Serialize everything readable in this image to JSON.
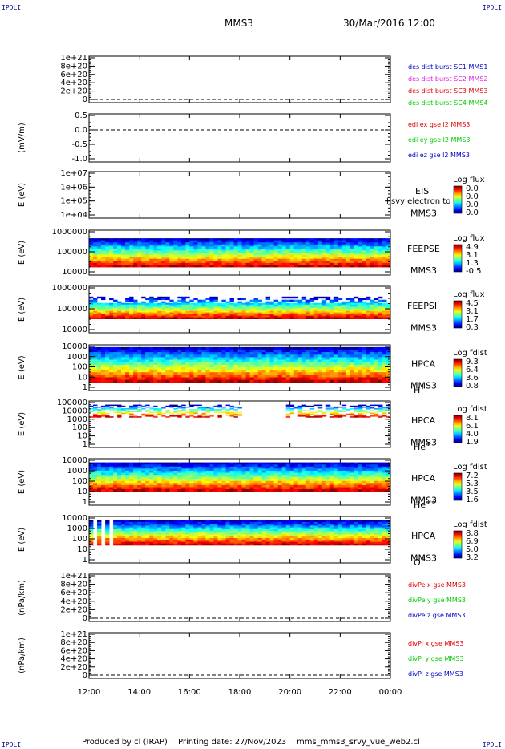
{
  "corners": {
    "top_left": "IPDLI",
    "top_right": "IPDLI",
    "bottom_left": "IPDLI",
    "bottom_right": "IPDLI"
  },
  "header": {
    "spacecraft": "MMS3",
    "datetime": "30/Mar/2016 12:00"
  },
  "footer": {
    "produced_by": "Produced by cl (IRAP)",
    "printing_date": "Printing date: 27/Nov/2023",
    "script": "mms_mms3_srvy_vue_web2.cl"
  },
  "colors": {
    "blue": "#0000cc",
    "magenta": "#e020e0",
    "red": "#e00000",
    "green": "#00cc00"
  },
  "chart_data": {
    "type": "heatmap",
    "xlabel": "",
    "x_ticks": [
      "12:00",
      "14:00",
      "16:00",
      "18:00",
      "20:00",
      "22:00",
      "00:00"
    ],
    "xlim_hours": [
      12,
      24
    ],
    "panels": [
      {
        "id": "des-dist",
        "type": "line",
        "ylabel": "",
        "yticks": [
          "1e+21",
          "8e+20",
          "6e+20",
          "4e+20",
          "2e+20",
          "0"
        ],
        "zero_line": true,
        "legend": [
          {
            "text": "des dist burst SC1 MMS1",
            "color": "#0000cc"
          },
          {
            "text": "des dist burst SC2 MMS2",
            "color": "#e020e0"
          },
          {
            "text": "des dist burst SC3 MMS3",
            "color": "#e00000"
          },
          {
            "text": "des dist burst SC4 MMS4",
            "color": "#00cc00"
          }
        ]
      },
      {
        "id": "edi",
        "type": "line",
        "ylabel": "(mV/m)",
        "yticks": [
          "0.5",
          "0.0",
          "-0.5",
          "-1.0"
        ],
        "zero_line": true,
        "legend": [
          {
            "text": "edi ex gse l2 MMS3",
            "color": "#e00000"
          },
          {
            "text": "edi ey gse l2 MMS3",
            "color": "#00cc00"
          },
          {
            "text": "edi ez gse l2 MMS3",
            "color": "#0000cc"
          }
        ]
      },
      {
        "id": "eis",
        "type": "heatmap",
        "ylabel": "E (eV)",
        "yticks": [
          "1e+07",
          "1e+06",
          "1e+05",
          "1e+04"
        ],
        "labels": [
          "EIS",
          "MMS3"
        ],
        "overlay": "l svy electron to",
        "colorbar": {
          "title": "Log flux",
          "ticks": [
            "0.0",
            "0.0",
            "0.0",
            "0.0"
          ]
        }
      },
      {
        "id": "feepse",
        "type": "heatmap",
        "ylabel": "E (eV)",
        "yticks": [
          "1000000",
          "100000",
          "10000"
        ],
        "labels": [
          "FEEPSE",
          "MMS3"
        ],
        "colorbar": {
          "title": "Log flux",
          "ticks": [
            "4.9",
            "3.1",
            "1.3",
            "-0.5"
          ]
        }
      },
      {
        "id": "feepsi",
        "type": "heatmap",
        "ylabel": "E (eV)",
        "yticks": [
          "1000000",
          "100000",
          "10000"
        ],
        "labels": [
          "FEEPSI",
          "MMS3"
        ],
        "colorbar": {
          "title": "Log flux",
          "ticks": [
            "4.5",
            "3.1",
            "1.7",
            "0.3"
          ]
        }
      },
      {
        "id": "hpca-h",
        "type": "heatmap",
        "ylabel": "E (eV)",
        "yticks": [
          "10000",
          "1000",
          "100",
          "10",
          "1"
        ],
        "labels": [
          "HPCA",
          "MMS3"
        ],
        "species": "H",
        "charge": "+",
        "colorbar": {
          "title": "Log fdist",
          "ticks": [
            "9.3",
            "6.4",
            "3.6",
            "0.8"
          ]
        }
      },
      {
        "id": "hpca-he",
        "type": "heatmap",
        "ylabel": "E (eV)",
        "yticks": [
          "100000",
          "10000",
          "1000",
          "100",
          "10",
          "1"
        ],
        "labels": [
          "HPCA",
          "MMS3"
        ],
        "species": "He",
        "charge": "+",
        "colorbar": {
          "title": "Log fdist",
          "ticks": [
            "8.1",
            "6.1",
            "4.0",
            "1.9"
          ]
        }
      },
      {
        "id": "hpca-hepp",
        "type": "heatmap",
        "ylabel": "E (eV)",
        "yticks": [
          "10000",
          "1000",
          "100",
          "10",
          "1"
        ],
        "labels": [
          "HPCA",
          "MMS3"
        ],
        "species": "He",
        "charge": "++",
        "colorbar": {
          "title": "Log fdist",
          "ticks": [
            "7.2",
            "5.3",
            "3.5",
            "1.6"
          ]
        }
      },
      {
        "id": "hpca-o",
        "type": "heatmap",
        "ylabel": "E (eV)",
        "yticks": [
          "10000",
          "1000",
          "100",
          "10",
          "1"
        ],
        "labels": [
          "HPCA",
          "MMS3"
        ],
        "species": "O",
        "charge": "+",
        "colorbar": {
          "title": "Log fdist",
          "ticks": [
            "8.8",
            "6.9",
            "5.0",
            "3.2"
          ]
        }
      },
      {
        "id": "divpe",
        "type": "line",
        "ylabel": "(nPa/km)",
        "yticks": [
          "1e+21",
          "8e+20",
          "6e+20",
          "4e+20",
          "2e+20",
          "0"
        ],
        "zero_line": true,
        "legend": [
          {
            "text": "divPe x gse MMS3",
            "color": "#e00000"
          },
          {
            "text": "divPe y gse MMS3",
            "color": "#00cc00"
          },
          {
            "text": "divPe z gse MMS3",
            "color": "#0000cc"
          }
        ]
      },
      {
        "id": "divpi",
        "type": "line",
        "ylabel": "(nPa/km)",
        "yticks": [
          "1e+21",
          "8e+20",
          "6e+20",
          "4e+20",
          "2e+20",
          "0"
        ],
        "zero_line": true,
        "legend": [
          {
            "text": "divPi x gse MMS3",
            "color": "#e00000"
          },
          {
            "text": "divPi y gse MMS3",
            "color": "#00cc00"
          },
          {
            "text": "divPi z gse MMS3",
            "color": "#0000cc"
          }
        ]
      }
    ]
  }
}
